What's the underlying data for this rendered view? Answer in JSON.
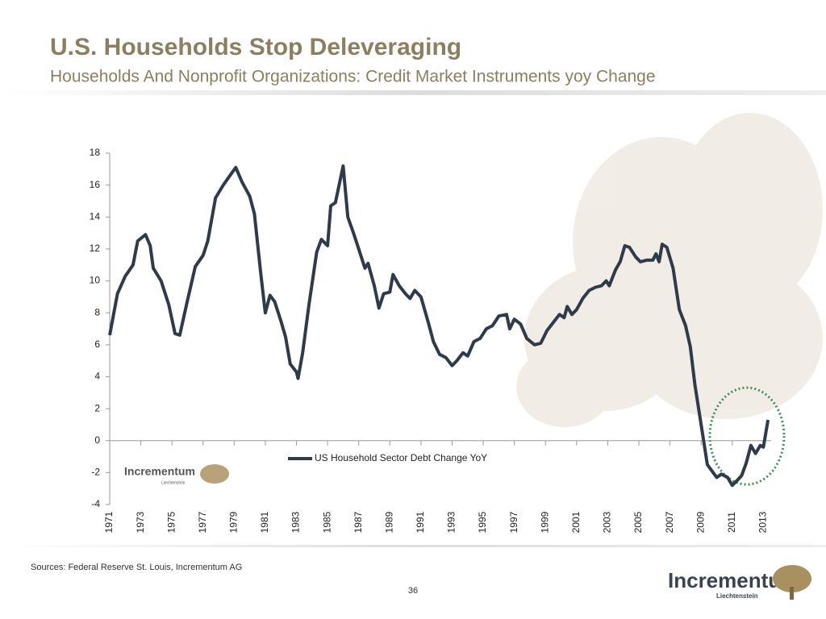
{
  "slide": {
    "source": "Sources: Federal Reserve St. Louis, Incrementum AG",
    "page_number": "36",
    "logo_name": "Incrementum",
    "logo_sub": "Liechtenstein"
  },
  "chart_data": {
    "type": "line",
    "title": "U.S. Households Stop Deleveraging",
    "subtitle": "Households And Nonprofit Organizations: Credit Market Instruments yoy Change",
    "x": [
      1971.0,
      1971.5,
      1972.0,
      1972.5,
      1972.8,
      1973.3,
      1973.6,
      1973.8,
      1974.3,
      1974.8,
      1975.2,
      1975.5,
      1976.0,
      1976.5,
      1977.0,
      1977.3,
      1977.8,
      1978.3,
      1978.8,
      1979.1,
      1979.5,
      1980.0,
      1980.3,
      1980.7,
      1981.0,
      1981.3,
      1981.6,
      1982.0,
      1982.3,
      1982.6,
      1983.0,
      1983.1,
      1983.4,
      1983.8,
      1984.3,
      1984.6,
      1985.0,
      1985.2,
      1985.5,
      1986.0,
      1986.3,
      1986.7,
      1987.0,
      1987.4,
      1987.6,
      1988.0,
      1988.3,
      1988.6,
      1989.0,
      1989.2,
      1989.6,
      1990.0,
      1990.3,
      1990.6,
      1991.0,
      1991.5,
      1991.8,
      1992.2,
      1992.6,
      1993.0,
      1993.3,
      1993.7,
      1994.0,
      1994.4,
      1994.8,
      1995.2,
      1995.6,
      1996.0,
      1996.5,
      1996.7,
      1997.0,
      1997.4,
      1997.8,
      1998.3,
      1998.7,
      1999.1,
      1999.5,
      1999.9,
      2000.2,
      2000.4,
      2000.7,
      2001.0,
      2001.4,
      2001.8,
      2002.2,
      2002.6,
      2002.9,
      2003.1,
      2003.5,
      2003.8,
      2004.1,
      2004.4,
      2004.8,
      2005.1,
      2005.5,
      2005.9,
      2006.1,
      2006.3,
      2006.5,
      2006.8,
      2007.2,
      2007.6,
      2008.0,
      2008.3,
      2008.6,
      2009.0,
      2009.4,
      2009.7,
      2010.0,
      2010.3,
      2010.7,
      2011.0,
      2011.3,
      2011.6,
      2011.9,
      2012.2,
      2012.5,
      2012.8,
      2013.0,
      2013.3
    ],
    "series": [
      {
        "name": "US Household Sector Debt Change YoY",
        "color": "#2e3b4a",
        "values": [
          6.6,
          9.2,
          10.3,
          11.0,
          12.5,
          12.9,
          12.2,
          10.8,
          10.0,
          8.5,
          6.7,
          6.6,
          8.8,
          10.9,
          11.6,
          12.5,
          15.2,
          16.0,
          16.7,
          17.1,
          16.2,
          15.3,
          14.2,
          10.5,
          8.0,
          9.1,
          8.7,
          7.5,
          6.5,
          4.8,
          4.3,
          3.9,
          5.5,
          8.5,
          11.8,
          12.6,
          12.2,
          14.7,
          14.9,
          17.2,
          14.0,
          12.9,
          12.0,
          10.8,
          11.1,
          9.7,
          8.3,
          9.2,
          9.3,
          10.4,
          9.7,
          9.2,
          8.9,
          9.4,
          9.0,
          7.3,
          6.2,
          5.4,
          5.2,
          4.7,
          5.0,
          5.5,
          5.3,
          6.2,
          6.4,
          7.0,
          7.2,
          7.8,
          7.9,
          7.0,
          7.6,
          7.3,
          6.4,
          6.0,
          6.1,
          6.9,
          7.4,
          7.9,
          7.7,
          8.4,
          7.9,
          8.2,
          8.9,
          9.4,
          9.6,
          9.7,
          10.0,
          9.7,
          10.7,
          11.2,
          12.2,
          12.1,
          11.5,
          11.2,
          11.3,
          11.3,
          11.7,
          11.2,
          12.3,
          12.1,
          10.8,
          8.2,
          7.2,
          5.9,
          3.5,
          1.0,
          -1.5,
          -1.9,
          -2.3,
          -2.1,
          -2.3,
          -2.8,
          -2.5,
          -2.2,
          -1.4,
          -0.3,
          -0.8,
          -0.3,
          -0.4,
          1.3
        ]
      }
    ],
    "xlim": [
      1971,
      2013.5
    ],
    "xticks": [
      1971,
      1973,
      1975,
      1977,
      1979,
      1981,
      1983,
      1985,
      1987,
      1989,
      1991,
      1993,
      1995,
      1997,
      1999,
      2001,
      2003,
      2005,
      2007,
      2009,
      2011,
      2013
    ],
    "ylim": [
      -4,
      18
    ],
    "yticks": [
      -4,
      -2,
      0,
      2,
      4,
      6,
      8,
      10,
      12,
      14,
      16,
      18
    ]
  }
}
